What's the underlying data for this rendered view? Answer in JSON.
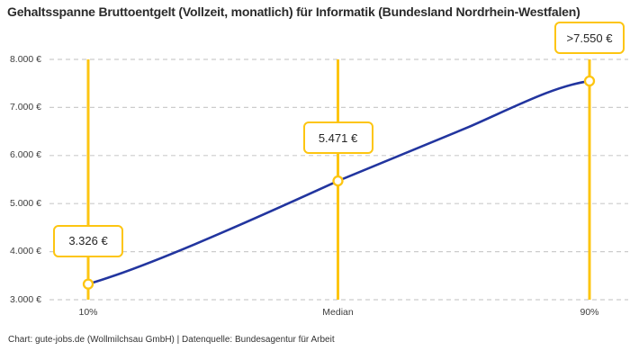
{
  "title": "Gehaltsspanne Bruttoentgelt (Vollzeit, monatlich) für Informatik (Bundesland Nordrhein-Westfalen)",
  "footer": "Chart: gute-jobs.de (Wollmilchsau GmbH) | Datenquelle: Bundesagentur für Arbeit",
  "colors": {
    "accent_yellow": "#fdc511",
    "line_blue": "#22359f",
    "grid_gray": "#cccccc",
    "title_text": "#2b2b2b",
    "tick_text": "#3d3d3d",
    "marker_fill": "#ffffff"
  },
  "chart_data": {
    "type": "line",
    "title": "Gehaltsspanne Bruttoentgelt (Vollzeit, monatlich) für Informatik (Bundesland Nordrhein-Westfalen)",
    "categories": [
      "10%",
      "Median",
      "90%"
    ],
    "values": [
      3326,
      5471,
      7550
    ],
    "value_labels": [
      "3.326 €",
      "5.471 €",
      ">7.550 €"
    ],
    "series": [
      {
        "name": "Bruttoentgelt",
        "values": [
          3326,
          5471,
          7550
        ]
      }
    ],
    "xlabel": "",
    "ylabel": "",
    "ylim": [
      3000,
      8000
    ],
    "yticks": [
      {
        "value": 3000,
        "label": "3.000 €"
      },
      {
        "value": 4000,
        "label": "4.000 €"
      },
      {
        "value": 5000,
        "label": "5.000 €"
      },
      {
        "value": 6000,
        "label": "6.000 €"
      },
      {
        "value": 7000,
        "label": "7.000 €"
      },
      {
        "value": 8000,
        "label": "8.000 €"
      }
    ],
    "grid": true,
    "legend_position": "none"
  }
}
